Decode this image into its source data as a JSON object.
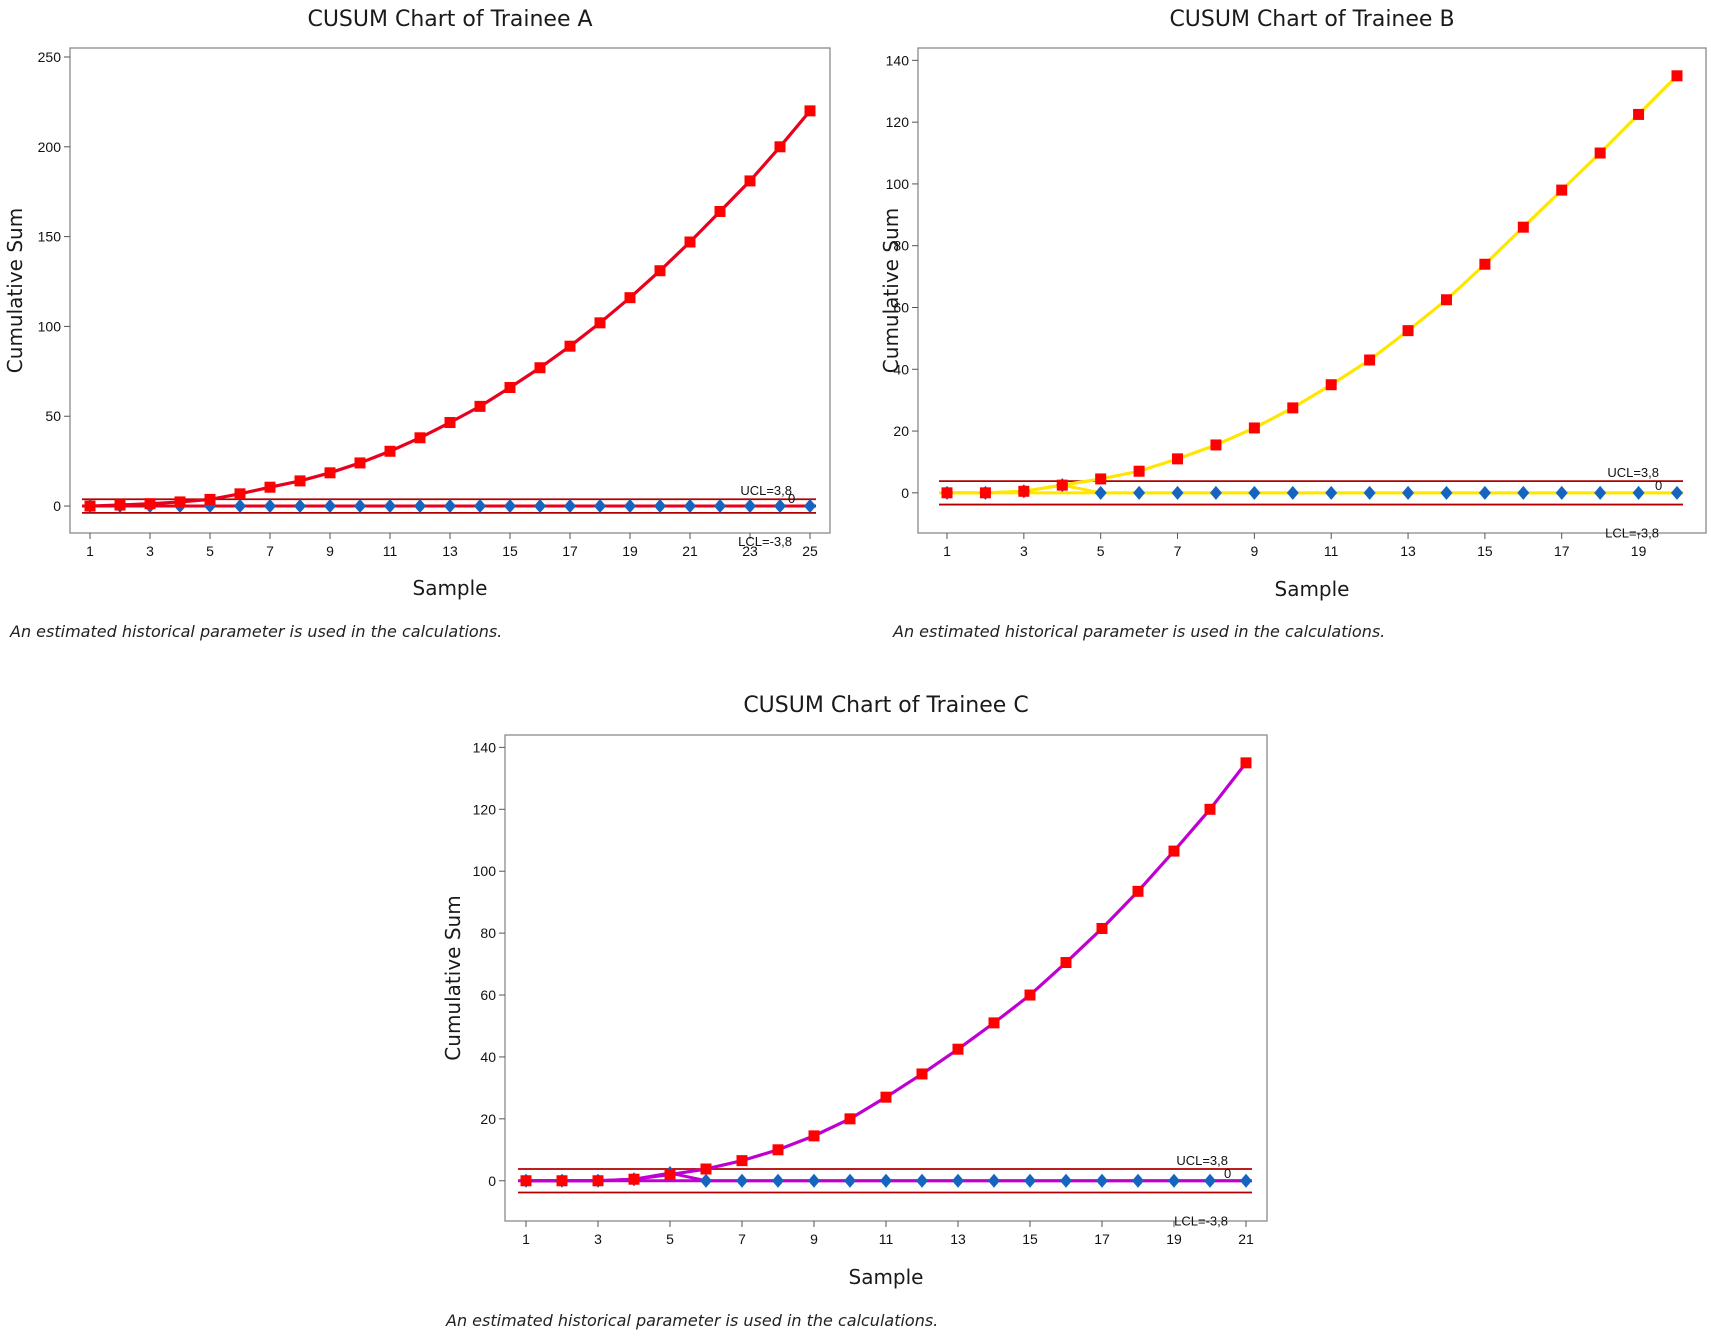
{
  "chart_data": [
    {
      "type": "line",
      "title": "CUSUM Chart of Trainee A",
      "xlabel": "Sample",
      "ylabel": "Cumulative Sum",
      "note": "An estimated historical parameter is used in the calculations.",
      "xlim": [
        1,
        25
      ],
      "ylim": [
        -15,
        255
      ],
      "xticks": [
        1,
        3,
        5,
        7,
        9,
        11,
        13,
        15,
        17,
        19,
        21,
        23,
        25
      ],
      "yticks": [
        0,
        50,
        100,
        150,
        200,
        250
      ],
      "ucl": 3.8,
      "lcl": -3.8,
      "center": 0,
      "ucl_label": "UCL=3,8",
      "lcl_label": "LCL=-3,8",
      "center_label": "0",
      "upper_color": "#ff0000",
      "line_color": "#e8001c",
      "lower_color": "#1565c0",
      "limit_color": "#b00000",
      "x": [
        1,
        2,
        3,
        4,
        5,
        6,
        7,
        8,
        9,
        10,
        11,
        12,
        13,
        14,
        15,
        16,
        17,
        18,
        19,
        20,
        21,
        22,
        23,
        24,
        25
      ],
      "series": [
        {
          "values": [
            0,
            0.6,
            1.3,
            2.3,
            3.7,
            6.8,
            10.5,
            14,
            18.5,
            24,
            30.5,
            38,
            46.5,
            55.5,
            66,
            77,
            89,
            102,
            116,
            131,
            147,
            164,
            181,
            200,
            220
          ]
        },
        {
          "values": [
            0,
            0,
            0,
            0,
            0,
            0,
            0,
            0,
            0,
            0,
            0,
            0,
            0,
            0,
            0,
            0,
            0,
            0,
            0,
            0,
            0,
            0,
            0,
            0,
            0
          ]
        }
      ]
    },
    {
      "type": "line",
      "title": "CUSUM Chart of Trainee B",
      "xlabel": "Sample",
      "ylabel": "Cumulative Sum",
      "note": "An estimated historical parameter is used in the calculations.",
      "xlim": [
        1,
        20
      ],
      "ylim": [
        -13,
        144
      ],
      "xticks": [
        1,
        3,
        5,
        7,
        9,
        11,
        13,
        15,
        17,
        19
      ],
      "yticks": [
        0,
        20,
        40,
        60,
        80,
        100,
        120,
        140
      ],
      "ucl": 3.8,
      "lcl": -3.8,
      "center": 0,
      "ucl_label": "UCL=3,8",
      "lcl_label": "LCL=-3,8",
      "center_label": "0",
      "upper_color": "#ff0000",
      "line_color": "#ffe600",
      "lower_color": "#1565c0",
      "limit_color": "#b00000",
      "x": [
        1,
        2,
        3,
        4,
        5,
        6,
        7,
        8,
        9,
        10,
        11,
        12,
        13,
        14,
        15,
        16,
        17,
        18,
        19,
        20
      ],
      "series": [
        {
          "values": [
            0,
            0,
            0.5,
            2.5,
            4.5,
            7,
            11,
            15.5,
            21,
            27.5,
            35,
            43,
            52.5,
            62.5,
            74,
            86,
            98,
            110,
            122.5,
            135
          ]
        },
        {
          "values": [
            0,
            0,
            0.5,
            2.5,
            0,
            0,
            0,
            0,
            0,
            0,
            0,
            0,
            0,
            0,
            0,
            0,
            0,
            0,
            0,
            0
          ]
        }
      ]
    },
    {
      "type": "line",
      "title": "CUSUM Chart of Trainee C",
      "xlabel": "Sample",
      "ylabel": "Cumulative Sum",
      "note": "An estimated historical parameter is used in the calculations.",
      "xlim": [
        1,
        21
      ],
      "ylim": [
        -13,
        144
      ],
      "xticks": [
        1,
        3,
        5,
        7,
        9,
        11,
        13,
        15,
        17,
        19,
        21
      ],
      "yticks": [
        0,
        20,
        40,
        60,
        80,
        100,
        120,
        140
      ],
      "ucl": 3.8,
      "lcl": -3.8,
      "center": 0,
      "ucl_label": "UCL=3,8",
      "lcl_label": "LCL=-3,8",
      "center_label": "0",
      "upper_color": "#ff0000",
      "line_color": "#c000d0",
      "lower_color": "#1565c0",
      "limit_color": "#b00000",
      "x": [
        1,
        2,
        3,
        4,
        5,
        6,
        7,
        8,
        9,
        10,
        11,
        12,
        13,
        14,
        15,
        16,
        17,
        18,
        19,
        20,
        21
      ],
      "series": [
        {
          "values": [
            0,
            0,
            0,
            0.5,
            2,
            3.8,
            6.5,
            10,
            14.5,
            20,
            27,
            34.5,
            42.5,
            51,
            60,
            70.5,
            81.5,
            93.5,
            106.5,
            120,
            135
          ]
        },
        {
          "values": [
            0,
            0,
            0,
            0.5,
            2.5,
            0,
            0,
            0,
            0,
            0,
            0,
            0,
            0,
            0,
            0,
            0,
            0,
            0,
            0,
            0,
            0
          ]
        }
      ]
    }
  ]
}
